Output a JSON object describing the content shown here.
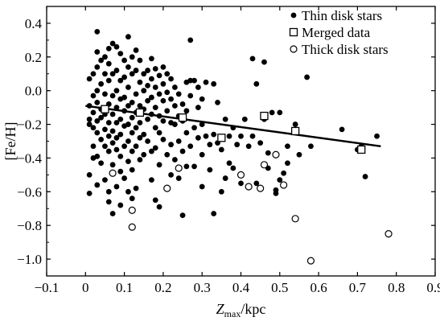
{
  "chart_data": {
    "type": "scatter",
    "xlabel": {
      "main": "Z",
      "subscript": "max",
      "rest": "/kpc"
    },
    "ylabel": "[Fe/H]",
    "xlim": [
      -0.1,
      0.9
    ],
    "ylim": [
      -1.1,
      0.5
    ],
    "xticks": [
      -0.1,
      0.0,
      0.1,
      0.2,
      0.3,
      0.4,
      0.5,
      0.6,
      0.7,
      0.8,
      0.9
    ],
    "xtick_labels": [
      "−0.1",
      "0",
      "0.1",
      "0.2",
      "0.3",
      "0.4",
      "0.5",
      "0.6",
      "0.7",
      "0.8",
      "0.9"
    ],
    "yticks": [
      0.4,
      0.2,
      0.0,
      -0.2,
      -0.4,
      -0.6,
      -0.8,
      -1.0
    ],
    "ytick_labels": [
      "0.4",
      "0.2",
      "0.0",
      "−0.2",
      "−0.4",
      "−0.6",
      "−0.8",
      "−1.0"
    ],
    "legend_position": "top-right",
    "series": [
      {
        "name": "Thin disk stars",
        "marker": "filled-circle",
        "points": [
          [
            0.01,
            0.07
          ],
          [
            0.01,
            -0.09
          ],
          [
            0.01,
            -0.17
          ],
          [
            0.01,
            -0.2
          ],
          [
            0.01,
            -0.5
          ],
          [
            0.01,
            -0.61
          ],
          [
            0.02,
            0.1
          ],
          [
            0.02,
            -0.03
          ],
          [
            0.02,
            -0.13
          ],
          [
            0.02,
            -0.22
          ],
          [
            0.02,
            -0.33
          ],
          [
            0.02,
            -0.4
          ],
          [
            0.03,
            0.35
          ],
          [
            0.03,
            0.23
          ],
          [
            0.03,
            0.14
          ],
          [
            0.03,
            0.0
          ],
          [
            0.03,
            -0.07
          ],
          [
            0.03,
            -0.18
          ],
          [
            0.03,
            -0.25
          ],
          [
            0.03,
            -0.39
          ],
          [
            0.03,
            -0.56
          ],
          [
            0.04,
            0.18
          ],
          [
            0.04,
            0.04
          ],
          [
            0.04,
            -0.11
          ],
          [
            0.04,
            -0.16
          ],
          [
            0.04,
            -0.29
          ],
          [
            0.04,
            -0.43
          ],
          [
            0.05,
            0.2
          ],
          [
            0.05,
            0.1
          ],
          [
            0.05,
            -0.02
          ],
          [
            0.05,
            -0.14
          ],
          [
            0.05,
            -0.23
          ],
          [
            0.05,
            -0.33
          ],
          [
            0.05,
            -0.53
          ],
          [
            0.06,
            0.25
          ],
          [
            0.06,
            0.16
          ],
          [
            0.06,
            0.06
          ],
          [
            0.06,
            -0.08
          ],
          [
            0.06,
            -0.19
          ],
          [
            0.06,
            -0.27
          ],
          [
            0.06,
            -0.36
          ],
          [
            0.06,
            -0.6
          ],
          [
            0.06,
            -0.66
          ],
          [
            0.07,
            0.28
          ],
          [
            0.07,
            0.1
          ],
          [
            0.07,
            -0.03
          ],
          [
            0.07,
            -0.14
          ],
          [
            0.07,
            -0.24
          ],
          [
            0.07,
            -0.31
          ],
          [
            0.07,
            -0.44
          ],
          [
            0.07,
            -0.73
          ],
          [
            0.08,
            0.26
          ],
          [
            0.08,
            0.12
          ],
          [
            0.08,
            0.0
          ],
          [
            0.08,
            -0.1
          ],
          [
            0.08,
            -0.19
          ],
          [
            0.08,
            -0.28
          ],
          [
            0.08,
            -0.35
          ],
          [
            0.08,
            -0.57
          ],
          [
            0.09,
            0.22
          ],
          [
            0.09,
            0.06
          ],
          [
            0.09,
            -0.05
          ],
          [
            0.09,
            -0.17
          ],
          [
            0.09,
            -0.26
          ],
          [
            0.09,
            -0.39
          ],
          [
            0.09,
            -0.48
          ],
          [
            0.09,
            -0.68
          ],
          [
            0.1,
            0.18
          ],
          [
            0.1,
            0.08
          ],
          [
            0.1,
            -0.04
          ],
          [
            0.1,
            -0.12
          ],
          [
            0.1,
            -0.21
          ],
          [
            0.1,
            -0.33
          ],
          [
            0.1,
            -0.52
          ],
          [
            0.11,
            0.32
          ],
          [
            0.11,
            0.14
          ],
          [
            0.11,
            0.02
          ],
          [
            0.11,
            -0.09
          ],
          [
            0.11,
            -0.2
          ],
          [
            0.11,
            -0.3
          ],
          [
            0.11,
            -0.42
          ],
          [
            0.11,
            -0.6
          ],
          [
            0.12,
            0.2
          ],
          [
            0.12,
            0.1
          ],
          [
            0.12,
            -0.07
          ],
          [
            0.12,
            -0.16
          ],
          [
            0.12,
            -0.25
          ],
          [
            0.12,
            -0.36
          ],
          [
            0.12,
            -0.47
          ],
          [
            0.12,
            -0.64
          ],
          [
            0.13,
            0.24
          ],
          [
            0.13,
            0.12
          ],
          [
            0.13,
            -0.02
          ],
          [
            0.13,
            -0.13
          ],
          [
            0.13,
            -0.22
          ],
          [
            0.13,
            -0.33
          ],
          [
            0.13,
            -0.58
          ],
          [
            0.14,
            0.18
          ],
          [
            0.14,
            0.05
          ],
          [
            0.14,
            -0.09
          ],
          [
            0.14,
            -0.19
          ],
          [
            0.14,
            -0.28
          ],
          [
            0.14,
            -0.41
          ],
          [
            0.15,
            0.1
          ],
          [
            0.15,
            0.0
          ],
          [
            0.15,
            -0.11
          ],
          [
            0.15,
            -0.26
          ],
          [
            0.15,
            -0.38
          ],
          [
            0.16,
            0.12
          ],
          [
            0.16,
            0.03
          ],
          [
            0.16,
            -0.06
          ],
          [
            0.16,
            -0.17
          ],
          [
            0.16,
            -0.3
          ],
          [
            0.17,
            0.19
          ],
          [
            0.17,
            0.07
          ],
          [
            0.17,
            -0.04
          ],
          [
            0.17,
            -0.14
          ],
          [
            0.17,
            -0.36
          ],
          [
            0.17,
            -0.53
          ],
          [
            0.18,
            0.13
          ],
          [
            0.18,
            0.02
          ],
          [
            0.18,
            -0.1
          ],
          [
            0.18,
            -0.22
          ],
          [
            0.18,
            -0.34
          ],
          [
            0.18,
            -0.65
          ],
          [
            0.19,
            0.09
          ],
          [
            0.19,
            -0.02
          ],
          [
            0.19,
            -0.15
          ],
          [
            0.19,
            -0.25
          ],
          [
            0.19,
            -0.44
          ],
          [
            0.19,
            -0.69
          ],
          [
            0.2,
            0.14
          ],
          [
            0.2,
            0.04
          ],
          [
            0.2,
            -0.06
          ],
          [
            0.2,
            -0.18
          ],
          [
            0.2,
            -0.29
          ],
          [
            0.21,
            0.1
          ],
          [
            0.21,
            -0.01
          ],
          [
            0.21,
            -0.12
          ],
          [
            0.21,
            -0.38
          ],
          [
            0.22,
            0.07
          ],
          [
            0.22,
            -0.05
          ],
          [
            0.22,
            -0.19
          ],
          [
            0.22,
            -0.32
          ],
          [
            0.22,
            -0.5
          ],
          [
            0.23,
            0.02
          ],
          [
            0.23,
            -0.09
          ],
          [
            0.23,
            -0.2
          ],
          [
            0.23,
            -0.41
          ],
          [
            0.24,
            -0.02
          ],
          [
            0.24,
            -0.15
          ],
          [
            0.24,
            -0.3
          ],
          [
            0.24,
            -0.52
          ],
          [
            0.25,
            -0.08
          ],
          [
            0.25,
            -0.18
          ],
          [
            0.25,
            -0.36
          ],
          [
            0.25,
            -0.74
          ],
          [
            0.26,
            0.05
          ],
          [
            0.26,
            -0.12
          ],
          [
            0.26,
            -0.25
          ],
          [
            0.26,
            -0.45
          ],
          [
            0.27,
            0.3
          ],
          [
            0.27,
            0.06
          ],
          [
            0.27,
            -0.03
          ],
          [
            0.27,
            -0.33
          ],
          [
            0.28,
            0.06
          ],
          [
            0.28,
            -0.22
          ],
          [
            0.28,
            -0.45
          ],
          [
            0.29,
            0.02
          ],
          [
            0.29,
            -0.1
          ],
          [
            0.29,
            -0.28
          ],
          [
            0.3,
            -0.05
          ],
          [
            0.3,
            -0.2
          ],
          [
            0.3,
            -0.38
          ],
          [
            0.3,
            -0.57
          ],
          [
            0.31,
            0.05
          ],
          [
            0.31,
            -0.27
          ],
          [
            0.32,
            -0.32
          ],
          [
            0.32,
            -0.47
          ],
          [
            0.33,
            0.04
          ],
          [
            0.33,
            -0.26
          ],
          [
            0.33,
            -0.73
          ],
          [
            0.34,
            -0.07
          ],
          [
            0.34,
            -0.31
          ],
          [
            0.35,
            -0.35
          ],
          [
            0.35,
            -0.6
          ],
          [
            0.36,
            -0.17
          ],
          [
            0.36,
            -0.52
          ],
          [
            0.37,
            -0.27
          ],
          [
            0.37,
            -0.43
          ],
          [
            0.38,
            -0.22
          ],
          [
            0.38,
            -0.46
          ],
          [
            0.39,
            -0.32
          ],
          [
            0.4,
            -0.27
          ],
          [
            0.4,
            -0.55
          ],
          [
            0.41,
            -0.17
          ],
          [
            0.42,
            -0.33
          ],
          [
            0.43,
            0.19
          ],
          [
            0.43,
            -0.27
          ],
          [
            0.44,
            0.04
          ],
          [
            0.44,
            -0.55
          ],
          [
            0.45,
            -0.31
          ],
          [
            0.46,
            -0.17
          ],
          [
            0.46,
            0.17
          ],
          [
            0.47,
            -0.46
          ],
          [
            0.47,
            -0.37
          ],
          [
            0.48,
            -0.13
          ],
          [
            0.49,
            -0.61
          ],
          [
            0.49,
            -0.59
          ],
          [
            0.5,
            -0.53
          ],
          [
            0.5,
            -0.13
          ],
          [
            0.51,
            -0.49
          ],
          [
            0.52,
            -0.33
          ],
          [
            0.52,
            -0.43
          ],
          [
            0.54,
            -0.2
          ],
          [
            0.55,
            -0.38
          ],
          [
            0.57,
            0.08
          ],
          [
            0.58,
            -0.33
          ],
          [
            0.66,
            -0.23
          ],
          [
            0.7,
            -0.35
          ],
          [
            0.71,
            -0.33
          ],
          [
            0.72,
            -0.51
          ],
          [
            0.75,
            -0.27
          ]
        ]
      },
      {
        "name": "Merged data",
        "marker": "open-square",
        "points": [
          [
            0.05,
            -0.11
          ],
          [
            0.14,
            -0.13
          ],
          [
            0.25,
            -0.16
          ],
          [
            0.35,
            -0.28
          ],
          [
            0.46,
            -0.15
          ],
          [
            0.54,
            -0.24
          ],
          [
            0.71,
            -0.35
          ]
        ]
      },
      {
        "name": "Thick disk stars",
        "marker": "open-circle",
        "points": [
          [
            0.07,
            -0.49
          ],
          [
            0.12,
            -0.71
          ],
          [
            0.12,
            -0.81
          ],
          [
            0.21,
            -0.58
          ],
          [
            0.24,
            -0.46
          ],
          [
            0.4,
            -0.5
          ],
          [
            0.42,
            -0.57
          ],
          [
            0.45,
            -0.58
          ],
          [
            0.46,
            -0.44
          ],
          [
            0.49,
            -0.38
          ],
          [
            0.51,
            -0.56
          ],
          [
            0.54,
            -0.76
          ],
          [
            0.58,
            -1.01
          ],
          [
            0.78,
            -0.85
          ]
        ]
      }
    ],
    "fit_line": {
      "x": [
        0.0,
        0.76
      ],
      "y": [
        -0.09,
        -0.33
      ]
    }
  }
}
